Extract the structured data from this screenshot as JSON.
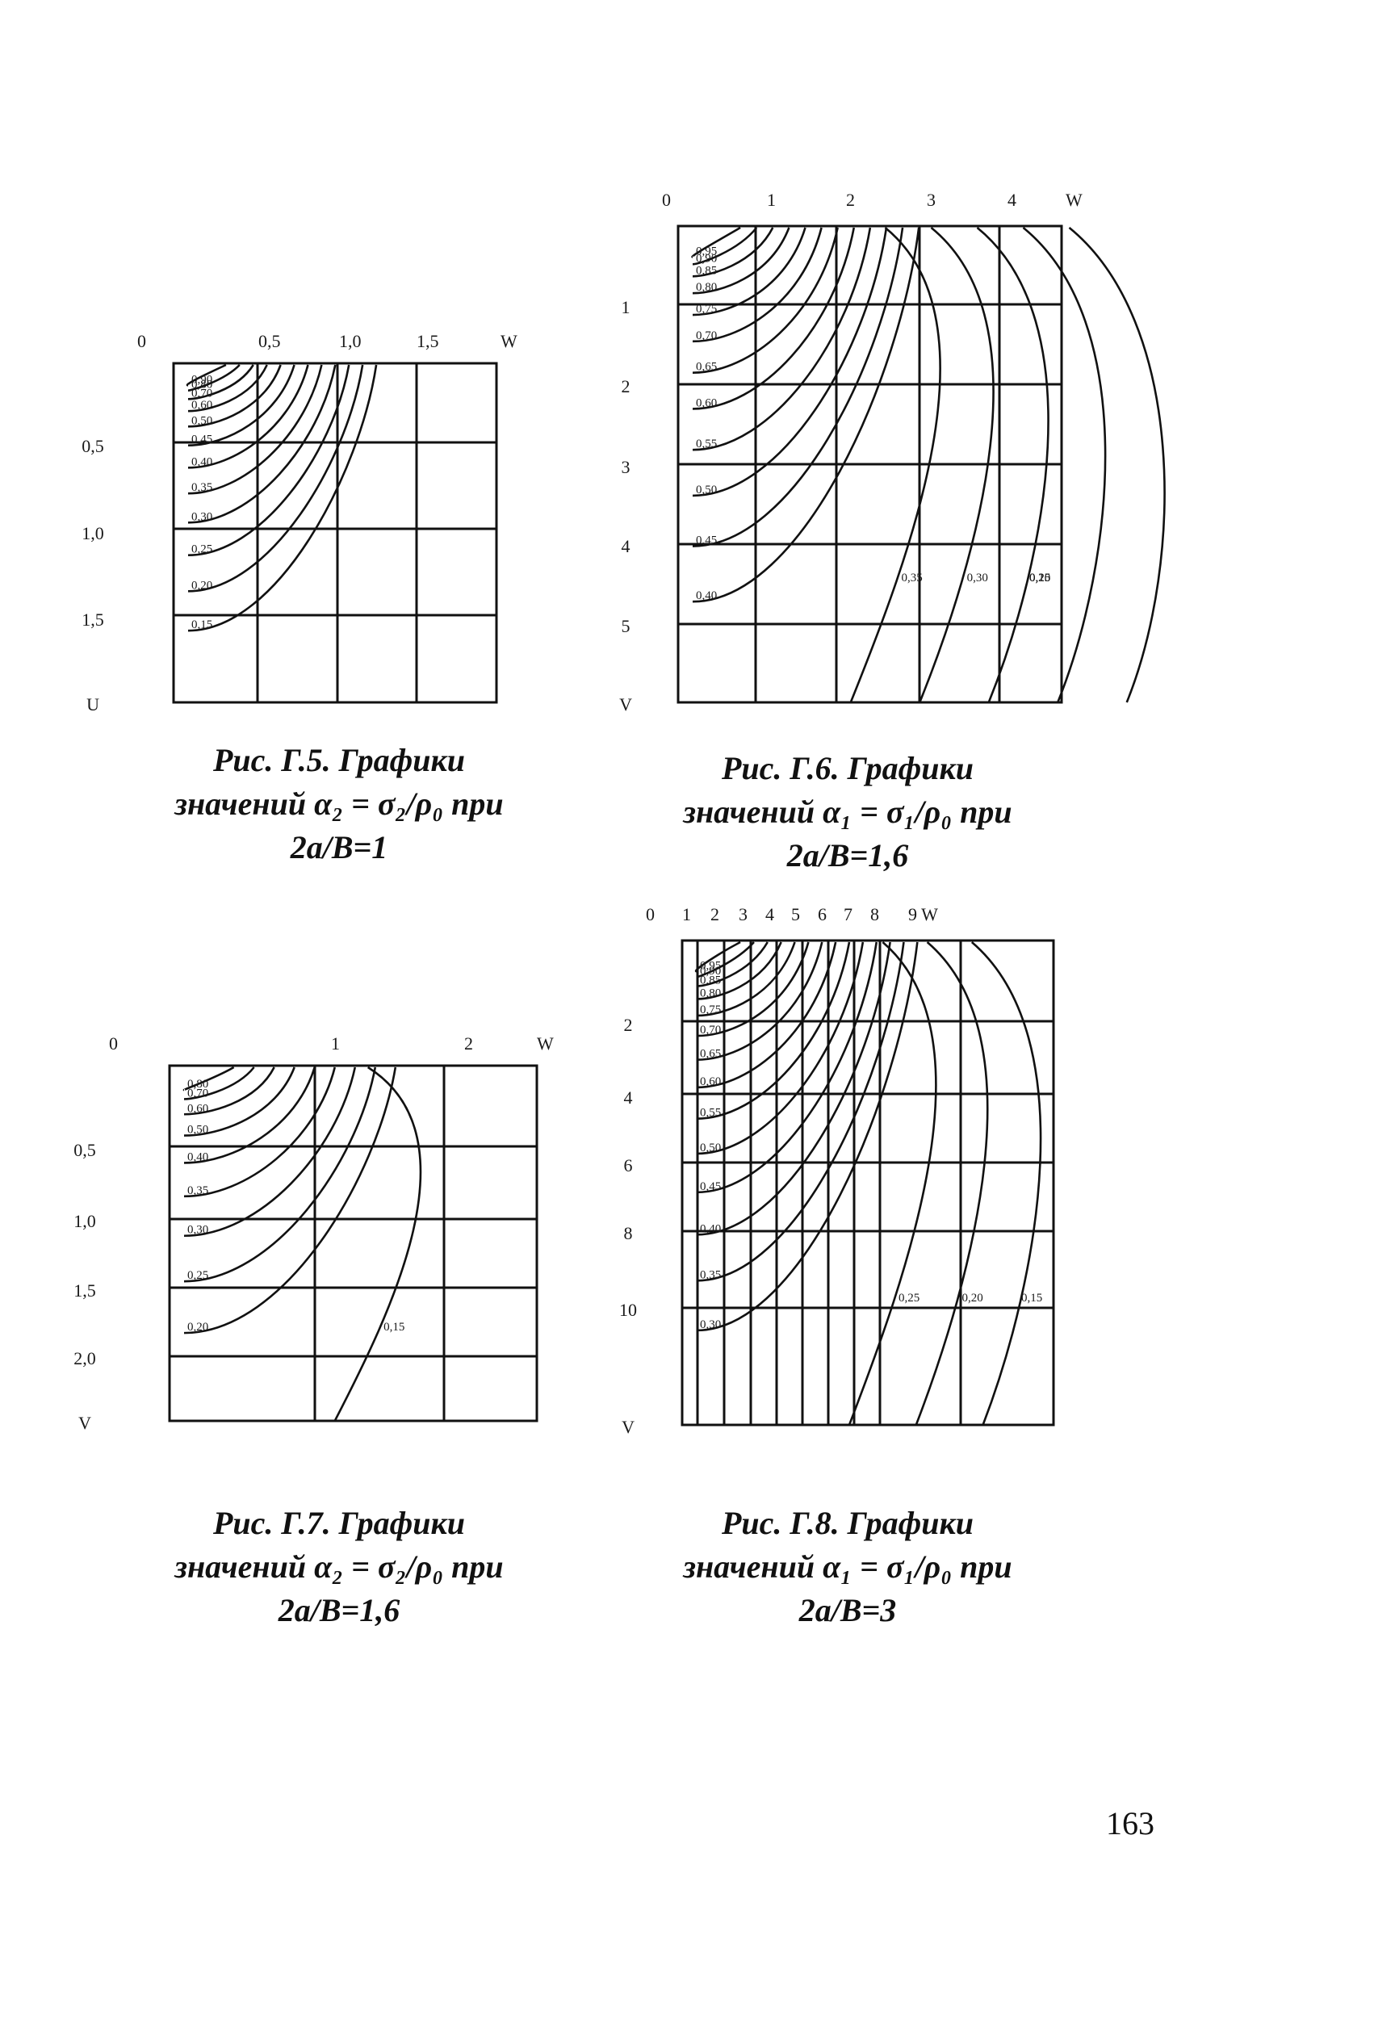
{
  "figures": [
    {
      "id": "g5",
      "axes": {
        "w_ticks": [
          "0",
          "0,5",
          "1,0",
          "1,5",
          "W"
        ],
        "v_ticks": [
          "0,5",
          "1,0",
          "1,5",
          "U"
        ]
      },
      "curve_labels": [
        "0,90",
        "0,80",
        "0,70",
        "0,60",
        "0,50",
        "0,45",
        "0,40",
        "0,35",
        "0,30",
        "0,25",
        "0,20",
        "0,15"
      ],
      "caption": {
        "line1": "Рис. Г.5. Графики",
        "line2": "значений α₂ = σ₂/ρ₀ при",
        "line3": "2a/B=1"
      }
    },
    {
      "id": "g6",
      "axes": {
        "w_ticks": [
          "0",
          "1",
          "2",
          "3",
          "4",
          "W"
        ],
        "v_ticks": [
          "1",
          "2",
          "3",
          "4",
          "5",
          "V"
        ]
      },
      "curve_labels": [
        "0,95",
        "0,90",
        "0,85",
        "0,80",
        "0,75",
        "0,70",
        "0,65",
        "0,60",
        "0,55",
        "0,50",
        "0,45",
        "0,40"
      ],
      "far_labels": [
        "0,35",
        "0,30",
        "0,25",
        "0,15",
        "0,20"
      ],
      "caption": {
        "line1": "Рис. Г.6. Графики",
        "line2": "значений α₁ = σ₁/ρ₀ при",
        "line3": "2a/B=1,6"
      }
    },
    {
      "id": "g7",
      "axes": {
        "w_ticks": [
          "0",
          "1",
          "2",
          "W"
        ],
        "v_ticks": [
          "0,5",
          "1,0",
          "1,5",
          "2,0",
          "V"
        ]
      },
      "curve_labels": [
        "0,80",
        "0,70",
        "0,60",
        "0,50",
        "0,40",
        "0,35",
        "0,30",
        "0,25",
        "0,20"
      ],
      "far_labels": [
        "0,15"
      ],
      "caption": {
        "line1": "Рис. Г.7. Графики",
        "line2": "значений α₂ = σ₂/ρ₀ при",
        "line3": "2a/B=1,6"
      }
    },
    {
      "id": "g8",
      "axes": {
        "w_ticks": [
          "0",
          "1",
          "2",
          "3",
          "4",
          "5",
          "6",
          "7",
          "8",
          "9 W"
        ],
        "v_ticks": [
          "2",
          "4",
          "6",
          "8",
          "10",
          "V"
        ]
      },
      "curve_labels": [
        "0,95",
        "0,90",
        "0,85",
        "0,80",
        "0,75",
        "0,70",
        "0,65",
        "0,60",
        "0,55",
        "0,50",
        "0,45",
        "0,40",
        "0,35",
        "0,30"
      ],
      "far_labels": [
        "0,25",
        "0,20",
        "0,15"
      ],
      "caption": {
        "line1": "Рис. Г.8. Графики",
        "line2": "значений α₁ = σ₁/ρ₀ при",
        "line3": "2a/B=3"
      }
    }
  ],
  "page_number": "163"
}
